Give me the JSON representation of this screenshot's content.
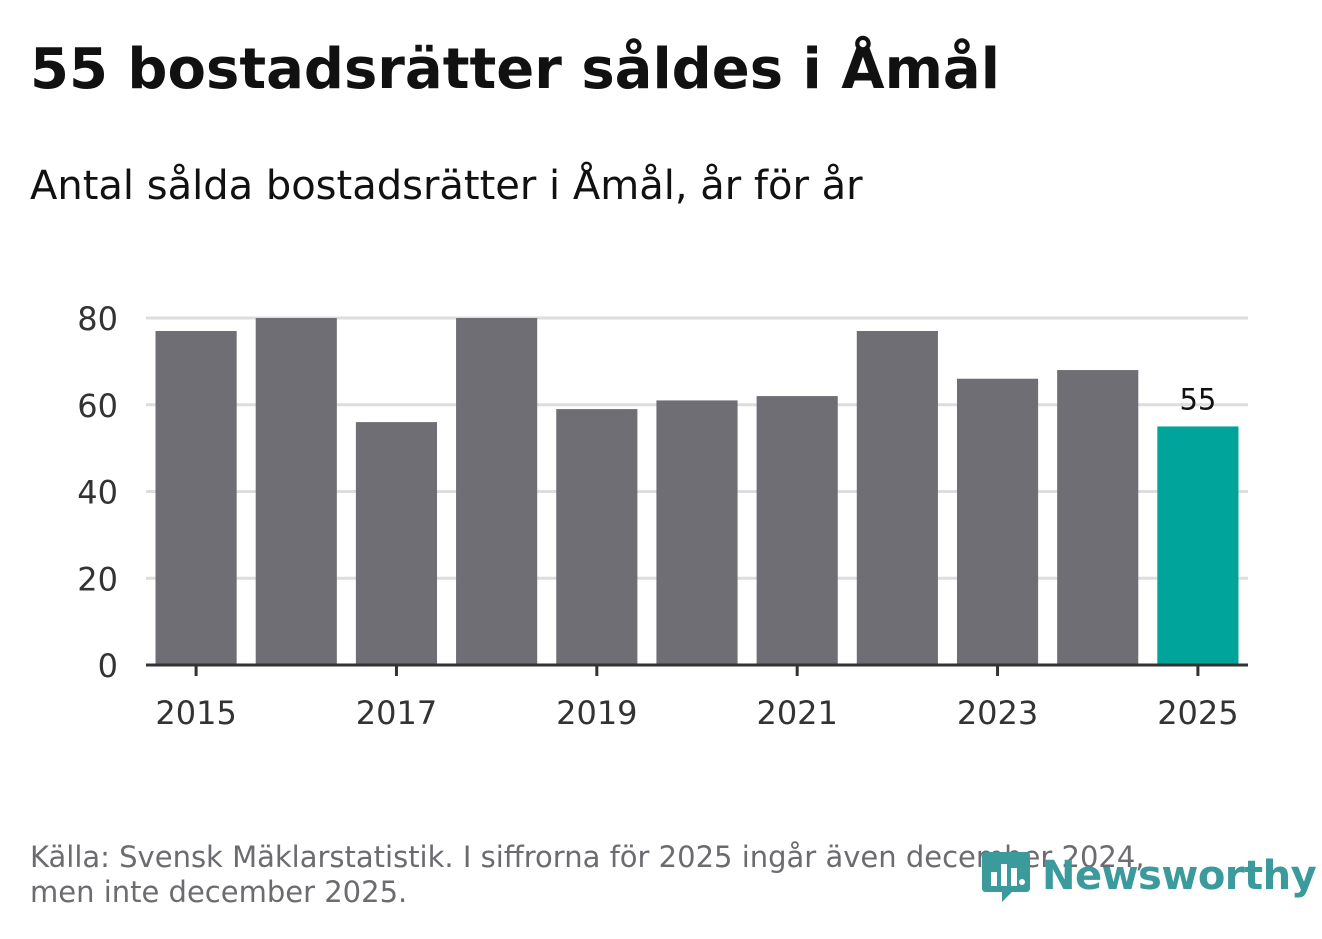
{
  "header": {
    "title": "55 bostadsrätter såldes i Åmål",
    "subtitle": "Antal sålda bostadsrätter i Åmål, år för år"
  },
  "footer": {
    "source_line1": "Källa: Svensk Mäklarstatistik. I siffrorna för 2025 ingår även december 2024,",
    "source_line2": "men inte december 2025."
  },
  "logo": {
    "text": "Newsworthy",
    "icon": "newsworthy-logo-icon"
  },
  "colors": {
    "bar": "#6f6e75",
    "highlight": "#00a49a",
    "grid": "#dddddd",
    "axis": "#333333",
    "text": "#333333",
    "logo": "#3a9a9c"
  },
  "chart_data": {
    "type": "bar",
    "title": "55 bostadsrätter såldes i Åmål",
    "subtitle": "Antal sålda bostadsrätter i Åmål, år för år",
    "xlabel": "",
    "ylabel": "",
    "categories": [
      2015,
      2016,
      2017,
      2018,
      2019,
      2020,
      2021,
      2022,
      2023,
      2024,
      2025
    ],
    "values": [
      77,
      80,
      56,
      80,
      59,
      61,
      62,
      77,
      66,
      68,
      55
    ],
    "highlight_index": 10,
    "highlight_label": "55",
    "ylim": [
      0,
      80
    ],
    "yticks": [
      0,
      20,
      40,
      60,
      80
    ],
    "xtick_labels": [
      "2015",
      "2017",
      "2019",
      "2021",
      "2023",
      "2025"
    ],
    "grid": true
  }
}
